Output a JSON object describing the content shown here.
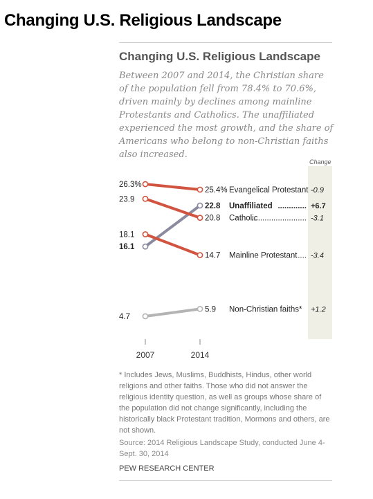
{
  "page": {
    "heading": "Changing U.S. Religious Landscape",
    "footnote": "* Includes Jews, Muslims, Buddhists, Hindus, other world religions and other faiths. Those who did not answer the religious identity question, as well as groups whose share of the population did not change significantly, including the historically black Protestant tradition, Mormons and others, are not shown.",
    "source": "Source: 2014 Religious Landscape Study, conducted June 4-Sept. 30, 2014",
    "credit": "PEW RESEARCH CENTER"
  },
  "chart_data": {
    "type": "line",
    "title": "Changing U.S. Religious Landscape",
    "subtitle": "Between 2007 and 2014, the Christian share of the population fell from 78.4% to 70.6%, driven mainly by declines among mainline Protestants and Catholics. The unaffiliated experienced the most growth, and the share of Americans who belong to non-Christian faiths also increased.",
    "x": [
      "2007",
      "2014"
    ],
    "change_header": "Change",
    "colors": {
      "christian": "#d0543f",
      "unaffiliated": "#8b8a9e",
      "non_christian": "#b4b4b4",
      "change_column": "#efefe6"
    },
    "series": [
      {
        "name": "Evangelical Protestant",
        "values": [
          26.3,
          25.4
        ],
        "start_label": "26.3%",
        "end_label": "25.4%",
        "change": "-0.9",
        "color_key": "christian",
        "leader": "",
        "bold": false
      },
      {
        "name": "Unaffiliated",
        "values": [
          16.1,
          22.8
        ],
        "start_label": "16.1",
        "end_label": "22.8",
        "change": "+6.7",
        "color_key": "unaffiliated",
        "leader": ".............",
        "bold": true
      },
      {
        "name": "Catholic",
        "values": [
          23.9,
          20.8
        ],
        "start_label": "23.9",
        "end_label": "20.8",
        "change": "-3.1",
        "color_key": "christian",
        "leader": ".........................",
        "bold": false
      },
      {
        "name": "Mainline Protestant",
        "values": [
          18.1,
          14.7
        ],
        "start_label": "18.1",
        "end_label": "14.7",
        "change": "-3.4",
        "color_key": "christian",
        "leader": ".....",
        "bold": false
      },
      {
        "name": "Non-Christian faiths*",
        "values": [
          4.7,
          5.9
        ],
        "start_label": "4.7",
        "end_label": "5.9",
        "change": "+1.2",
        "color_key": "non_christian",
        "leader": "",
        "bold": false
      }
    ]
  }
}
